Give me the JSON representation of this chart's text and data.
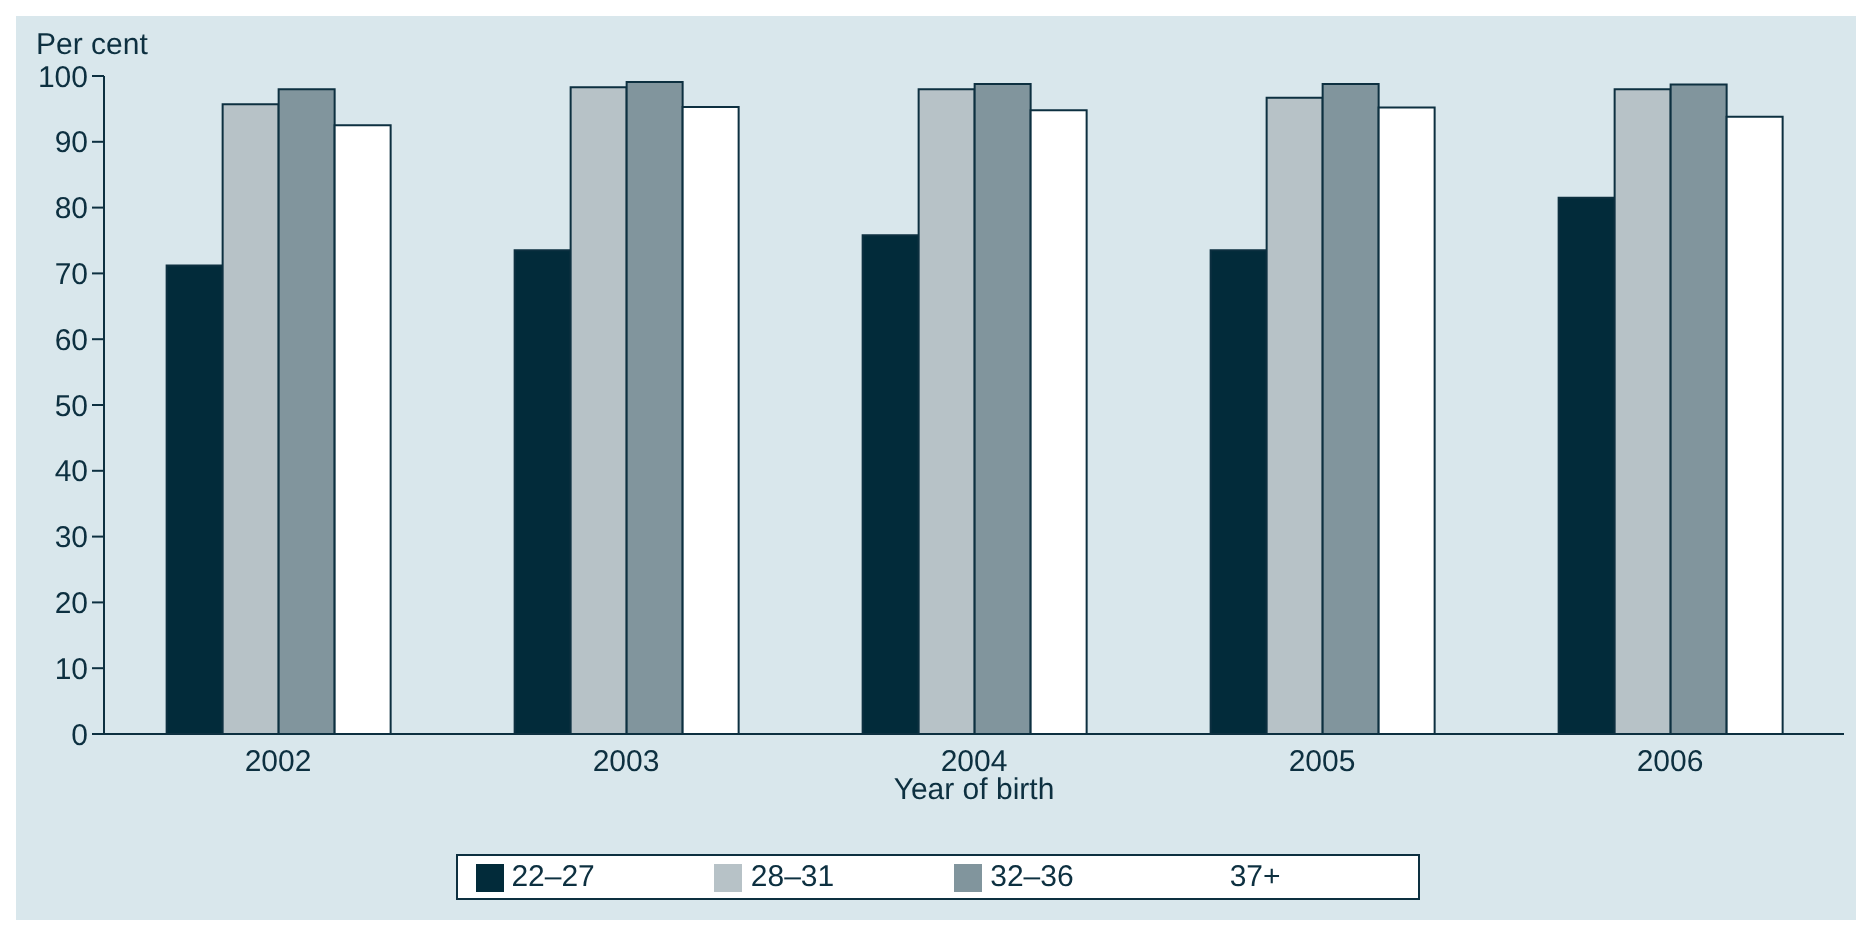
{
  "chart_data": {
    "type": "bar",
    "ylabel": "Per cent",
    "xlabel": "Year of birth",
    "categories": [
      "2002",
      "2003",
      "2004",
      "2005",
      "2006"
    ],
    "series": [
      {
        "name": "22–27",
        "color": "#022b3a",
        "values": [
          71.2,
          73.5,
          75.8,
          73.5,
          81.5
        ]
      },
      {
        "name": "28–31",
        "color": "#b7c2c7",
        "values": [
          95.7,
          98.3,
          98,
          96.7,
          98
        ]
      },
      {
        "name": "32–36",
        "color": "#81959d",
        "values": [
          98,
          99.1,
          98.8,
          98.8,
          98.7
        ]
      },
      {
        "name": "37+",
        "color": "#ffffff",
        "values": [
          92.5,
          95.3,
          94.8,
          95.2,
          93.8
        ]
      }
    ],
    "ylim": [
      0,
      100
    ],
    "yticks": [
      0,
      10,
      20,
      30,
      40,
      50,
      60,
      70,
      80,
      90,
      100
    ],
    "grid": false,
    "legend": "bottom"
  }
}
